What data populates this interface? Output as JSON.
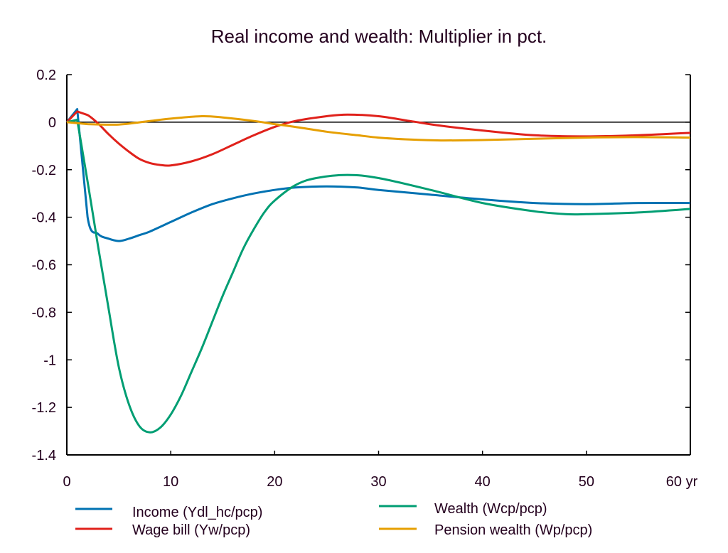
{
  "chart_data": {
    "type": "line",
    "title": "Real income and wealth: Multiplier in pct.",
    "xlabel": "",
    "ylabel": "",
    "x_unit_label": "yr",
    "xlim": [
      0,
      60
    ],
    "ylim": [
      -1.4,
      0.2
    ],
    "x_ticks": [
      0,
      10,
      20,
      30,
      40,
      50,
      60
    ],
    "x_tick_labels": [
      "0",
      "10",
      "20",
      "30",
      "40",
      "50",
      "60 yr"
    ],
    "y_ticks": [
      0.2,
      0,
      -0.2,
      -0.4,
      -0.6,
      -0.8,
      -1,
      -1.2,
      -1.4
    ],
    "y_tick_labels": [
      "0.2",
      "0",
      "-0.2",
      "-0.4",
      "-0.6",
      "-0.8",
      "-1",
      "-1.2",
      "-1.4"
    ],
    "zero_line": true,
    "grid": false,
    "legend_position": "bottom",
    "series": [
      {
        "name": "Income (Ydl_hc/pcp)",
        "color": "#0072b2",
        "x": [
          0,
          1,
          2,
          3,
          4,
          5,
          6,
          7,
          8,
          10,
          12,
          14,
          16,
          18,
          20,
          22,
          25,
          28,
          30,
          35,
          40,
          45,
          50,
          55,
          60
        ],
        "values": [
          0,
          0.055,
          -0.4,
          -0.47,
          -0.49,
          -0.5,
          -0.49,
          -0.475,
          -0.46,
          -0.42,
          -0.38,
          -0.345,
          -0.32,
          -0.3,
          -0.285,
          -0.275,
          -0.27,
          -0.275,
          -0.285,
          -0.305,
          -0.325,
          -0.34,
          -0.345,
          -0.34,
          -0.34
        ]
      },
      {
        "name": "Wage bill (Yw/pcp)",
        "color": "#e0211b",
        "x": [
          0,
          1,
          2,
          3,
          4,
          5,
          6,
          7,
          8,
          9,
          10,
          12,
          14,
          16,
          18,
          20,
          22,
          25,
          27,
          30,
          33,
          36,
          40,
          45,
          50,
          55,
          60
        ],
        "values": [
          0,
          0.045,
          0.03,
          -0.005,
          -0.05,
          -0.09,
          -0.125,
          -0.155,
          -0.172,
          -0.18,
          -0.182,
          -0.165,
          -0.135,
          -0.095,
          -0.055,
          -0.02,
          0.005,
          0.025,
          0.032,
          0.025,
          0.005,
          -0.015,
          -0.035,
          -0.055,
          -0.06,
          -0.055,
          -0.045
        ]
      },
      {
        "name": "Wealth (Wcp/pcp)",
        "color": "#009e73",
        "x": [
          0,
          1,
          2,
          3,
          4,
          5,
          6,
          7,
          8,
          9,
          10,
          11,
          12,
          13,
          14,
          15,
          16,
          17,
          18,
          19,
          20,
          22,
          24,
          27,
          30,
          35,
          40,
          45,
          48,
          50,
          55,
          60
        ],
        "values": [
          0,
          0.01,
          -0.25,
          -0.52,
          -0.78,
          -1.03,
          -1.19,
          -1.28,
          -1.305,
          -1.285,
          -1.23,
          -1.15,
          -1.05,
          -0.95,
          -0.84,
          -0.73,
          -0.63,
          -0.53,
          -0.45,
          -0.38,
          -0.33,
          -0.265,
          -0.235,
          -0.222,
          -0.235,
          -0.285,
          -0.34,
          -0.375,
          -0.387,
          -0.387,
          -0.38,
          -0.365
        ]
      },
      {
        "name": "Pension wealth (Wp/pcp)",
        "color": "#e69f00",
        "x": [
          0,
          2,
          5,
          8,
          10,
          13,
          15,
          18,
          20,
          22,
          25,
          28,
          30,
          33,
          36,
          40,
          45,
          50,
          55,
          60
        ],
        "values": [
          0,
          -0.008,
          -0.01,
          0.005,
          0.015,
          0.025,
          0.02,
          0.005,
          -0.008,
          -0.02,
          -0.04,
          -0.055,
          -0.065,
          -0.073,
          -0.077,
          -0.075,
          -0.07,
          -0.065,
          -0.063,
          -0.065
        ]
      }
    ]
  }
}
